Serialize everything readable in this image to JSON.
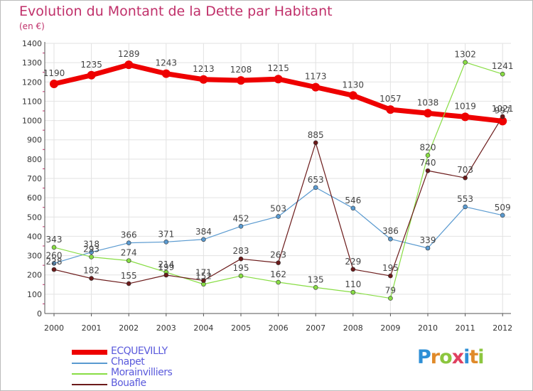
{
  "title": "Evolution du Montant de la Dette par Habitant",
  "subtitle": "(en €)",
  "logo_text": "Proxiti",
  "chart_data": {
    "type": "line",
    "x": [
      "2000",
      "2001",
      "2002",
      "2003",
      "2004",
      "2005",
      "2006",
      "2007",
      "2008",
      "2009",
      "2010",
      "2011",
      "2012"
    ],
    "ylim": [
      0,
      1400
    ],
    "yticks": [
      0,
      100,
      200,
      300,
      400,
      500,
      600,
      700,
      800,
      900,
      1000,
      1100,
      1200,
      1300,
      1400
    ],
    "grid": true,
    "legend_position": "bottom-left",
    "series": [
      {
        "name": "ECQUEVILLY",
        "color": "#ee0000",
        "values": [
          1190,
          1235,
          1289,
          1243,
          1213,
          1208,
          1215,
          1173,
          1130,
          1057,
          1038,
          1019,
          997
        ],
        "labels": [
          "1190",
          "1235",
          "1289",
          "1243",
          "1213",
          "1208",
          "1215",
          "1173",
          "1130",
          "1057",
          "1038",
          "1019",
          "997"
        ]
      },
      {
        "name": "Chapet",
        "color": "#5a9ad0",
        "values": [
          260,
          318,
          366,
          371,
          384,
          452,
          503,
          653,
          546,
          386,
          339,
          553,
          509
        ],
        "labels": [
          "260",
          "318",
          "366",
          "371",
          "384",
          "452",
          "503",
          "653",
          "546",
          "386",
          "339",
          "553",
          "509"
        ]
      },
      {
        "name": "Morainvilliers",
        "color": "#88dd44",
        "values": [
          343,
          293,
          274,
          214,
          152,
          195,
          162,
          135,
          110,
          79,
          820,
          1302,
          1241
        ],
        "labels": [
          "343",
          "293",
          "274",
          "214",
          "152",
          "195",
          "162",
          "135",
          "110",
          "79",
          "820",
          "1302",
          "1241"
        ]
      },
      {
        "name": "Bouafle",
        "color": "#6b1a1a",
        "values": [
          228,
          182,
          155,
          199,
          171,
          283,
          263,
          885,
          229,
          195,
          740,
          703,
          1021
        ],
        "labels": [
          "228",
          "182",
          "155",
          "199",
          "171",
          "283",
          "263",
          "885",
          "229",
          "195",
          "740",
          "703",
          "1021"
        ]
      }
    ]
  }
}
